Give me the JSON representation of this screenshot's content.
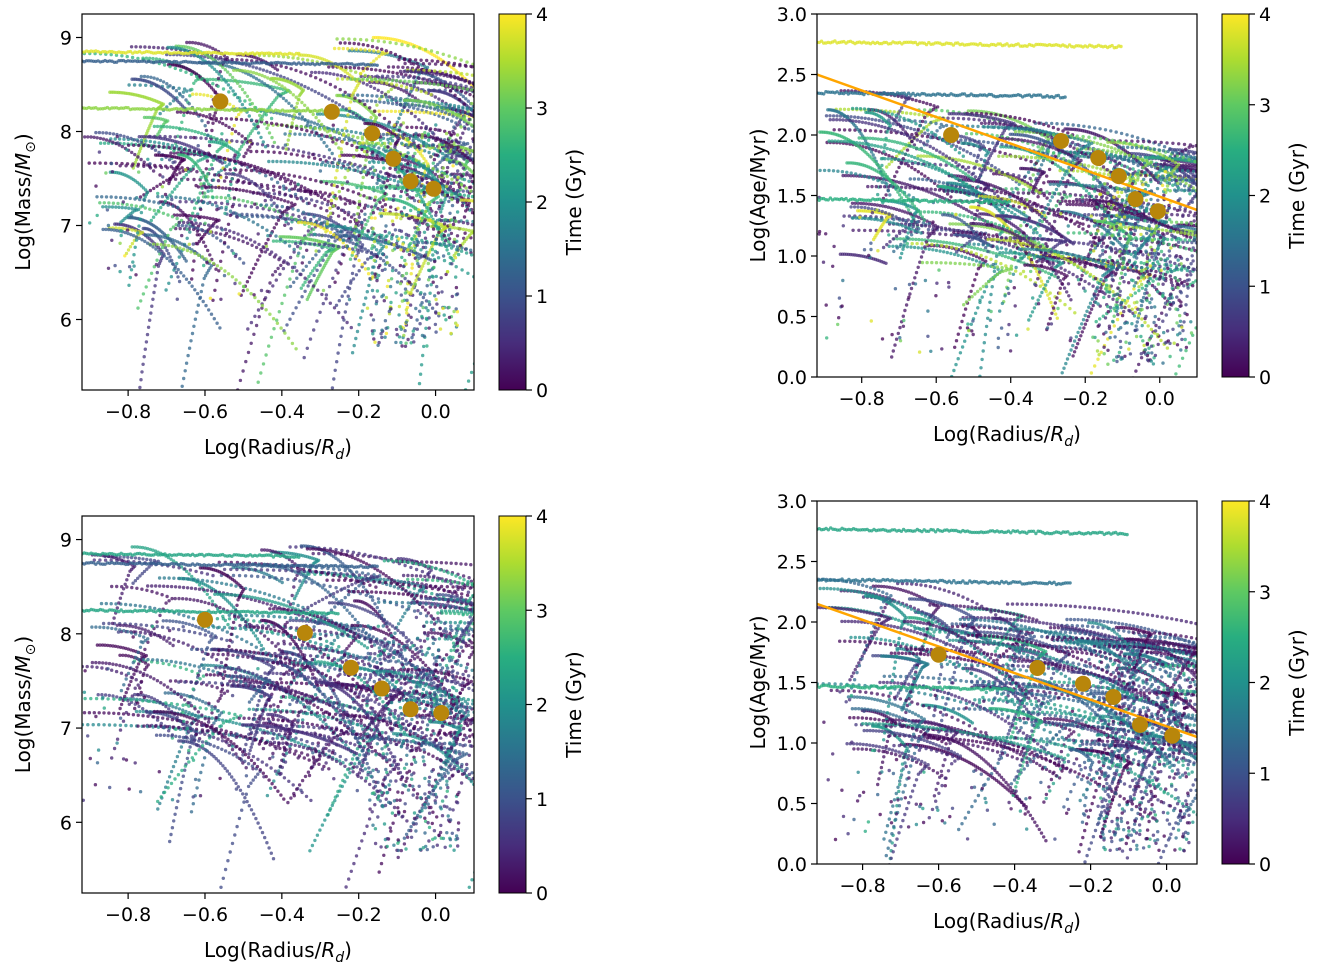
{
  "chart_data": [
    {
      "type": "scatter",
      "panel": "top-left",
      "xlabel": "Log(Radius/R_d)",
      "ylabel": "Log(Mass/M_sun)",
      "xlim": [
        -0.92,
        0.1
      ],
      "ylim": [
        5.25,
        9.25
      ],
      "xticks": [
        "−0.8",
        "−0.6",
        "−0.4",
        "−0.2",
        "0.0"
      ],
      "xtick_values": [
        -0.8,
        -0.6,
        -0.4,
        -0.2,
        0.0
      ],
      "yticks": [
        "6",
        "7",
        "8",
        "9"
      ],
      "ytick_values": [
        6,
        7,
        8,
        9
      ],
      "colorbar": {
        "label": "Time (Gyr)",
        "ticks": [
          "0",
          "1",
          "2",
          "3",
          "4"
        ],
        "range": [
          0,
          4
        ],
        "colormap": "viridis"
      },
      "highlight_points": {
        "color": "#b8860b",
        "x": [
          -0.56,
          -0.27,
          -0.165,
          -0.11,
          -0.065,
          -0.005
        ],
        "y": [
          8.32,
          8.21,
          7.98,
          7.71,
          7.47,
          7.39
        ]
      },
      "fit_line": null,
      "max_time": 4.0
    },
    {
      "type": "scatter",
      "panel": "top-right",
      "xlabel": "Log(Radius/R_d)",
      "ylabel": "Log(Age/Myr)",
      "xlim": [
        -0.92,
        0.1
      ],
      "ylim": [
        0.0,
        3.0
      ],
      "xticks": [
        "−0.8",
        "−0.6",
        "−0.4",
        "−0.2",
        "0.0"
      ],
      "xtick_values": [
        -0.8,
        -0.6,
        -0.4,
        -0.2,
        0.0
      ],
      "yticks": [
        "0.0",
        "0.5",
        "1.0",
        "1.5",
        "2.0",
        "2.5",
        "3.0"
      ],
      "ytick_values": [
        0.0,
        0.5,
        1.0,
        1.5,
        2.0,
        2.5,
        3.0
      ],
      "colorbar": {
        "label": "Time (Gyr)",
        "ticks": [
          "0",
          "1",
          "2",
          "3",
          "4"
        ],
        "range": [
          0,
          4
        ],
        "colormap": "viridis"
      },
      "highlight_points": {
        "color": "#b8860b",
        "x": [
          -0.56,
          -0.265,
          -0.165,
          -0.11,
          -0.065,
          -0.005
        ],
        "y": [
          2.0,
          1.95,
          1.81,
          1.66,
          1.47,
          1.37
        ]
      },
      "fit_line": {
        "color": "#ffa500",
        "x": [
          -0.92,
          0.1
        ],
        "y": [
          2.5,
          1.38
        ]
      },
      "max_time": 4.0
    },
    {
      "type": "scatter",
      "panel": "bottom-left",
      "xlabel": "Log(Radius/R_d)",
      "ylabel": "Log(Mass/M_sun)",
      "xlim": [
        -0.92,
        0.1
      ],
      "ylim": [
        5.25,
        9.25
      ],
      "xticks": [
        "−0.8",
        "−0.6",
        "−0.4",
        "−0.2",
        "0.0"
      ],
      "xtick_values": [
        -0.8,
        -0.6,
        -0.4,
        -0.2,
        0.0
      ],
      "yticks": [
        "6",
        "7",
        "8",
        "9"
      ],
      "ytick_values": [
        6,
        7,
        8,
        9
      ],
      "colorbar": {
        "label": "Time (Gyr)",
        "ticks": [
          "0",
          "1",
          "2",
          "3",
          "4"
        ],
        "range": [
          0,
          4
        ],
        "colormap": "viridis"
      },
      "highlight_points": {
        "color": "#b8860b",
        "x": [
          -0.6,
          -0.34,
          -0.22,
          -0.14,
          -0.065,
          0.015
        ],
        "y": [
          8.15,
          8.01,
          7.64,
          7.42,
          7.2,
          7.16
        ]
      },
      "fit_line": null,
      "max_time": 2.6
    },
    {
      "type": "scatter",
      "panel": "bottom-right",
      "xlabel": "Log(Radius/R_d)",
      "ylabel": "Log(Age/Myr)",
      "xlim": [
        -0.92,
        0.08
      ],
      "ylim": [
        0.0,
        3.0
      ],
      "xticks": [
        "−0.8",
        "−0.6",
        "−0.4",
        "−0.2",
        "0.0"
      ],
      "xtick_values": [
        -0.8,
        -0.6,
        -0.4,
        -0.2,
        0.0
      ],
      "yticks": [
        "0.0",
        "0.5",
        "1.0",
        "1.5",
        "2.0",
        "2.5",
        "3.0"
      ],
      "ytick_values": [
        0.0,
        0.5,
        1.0,
        1.5,
        2.0,
        2.5,
        3.0
      ],
      "colorbar": {
        "label": "Time (Gyr)",
        "ticks": [
          "0",
          "1",
          "2",
          "3",
          "4"
        ],
        "range": [
          0,
          4
        ],
        "colormap": "viridis"
      },
      "highlight_points": {
        "color": "#b8860b",
        "x": [
          -0.6,
          -0.34,
          -0.22,
          -0.14,
          -0.07,
          0.015
        ],
        "y": [
          1.73,
          1.62,
          1.49,
          1.38,
          1.15,
          1.06
        ]
      },
      "fit_line": {
        "color": "#ffa500",
        "x": [
          -0.92,
          0.08
        ],
        "y": [
          2.15,
          1.05
        ]
      },
      "max_time": 2.6
    }
  ]
}
